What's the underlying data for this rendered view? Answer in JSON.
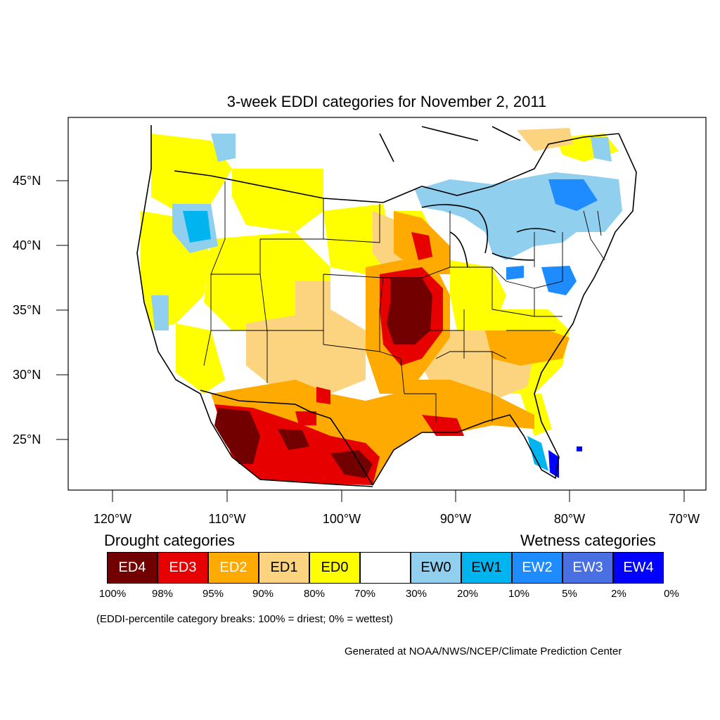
{
  "title": "3-week EDDI categories for November 2, 2011",
  "latitude_labels": [
    "45°N",
    "40°N",
    "35°N",
    "30°N",
    "25°N"
  ],
  "longitude_labels": [
    "120°W",
    "110°W",
    "100°W",
    "90°W",
    "80°W",
    "70°W"
  ],
  "legend": {
    "drought_heading": "Drought categories",
    "wetness_heading": "Wetness categories",
    "categories": [
      {
        "label": "ED4",
        "color": "#730000",
        "text_color": "#ffffff"
      },
      {
        "label": "ED3",
        "color": "#e60000",
        "text_color": "#ffffff"
      },
      {
        "label": "ED2",
        "color": "#ffaa00",
        "text_color": "#ffffff"
      },
      {
        "label": "ED1",
        "color": "#fcd37f",
        "text_color": "#000000"
      },
      {
        "label": "ED0",
        "color": "#ffff00",
        "text_color": "#000000"
      },
      {
        "label": "",
        "color": "#ffffff",
        "text_color": "#000000"
      },
      {
        "label": "EW0",
        "color": "#91cfef",
        "text_color": "#000000"
      },
      {
        "label": "EW1",
        "color": "#00b4f0",
        "text_color": "#000000"
      },
      {
        "label": "EW2",
        "color": "#1e8cff",
        "text_color": "#ffffff"
      },
      {
        "label": "EW3",
        "color": "#4a6fe3",
        "text_color": "#ffffff"
      },
      {
        "label": "EW4",
        "color": "#0000ff",
        "text_color": "#ffffff"
      }
    ],
    "percentile_breaks": [
      "100%",
      "98%",
      "95%",
      "90%",
      "80%",
      "70%",
      "30%",
      "20%",
      "10%",
      "5%",
      "2%",
      "0%"
    ],
    "note": "(EDDI-percentile category breaks: 100% = driest; 0% = wettest)"
  },
  "credit": "Generated at NOAA/NWS/NCEP/Climate Prediction Center"
}
